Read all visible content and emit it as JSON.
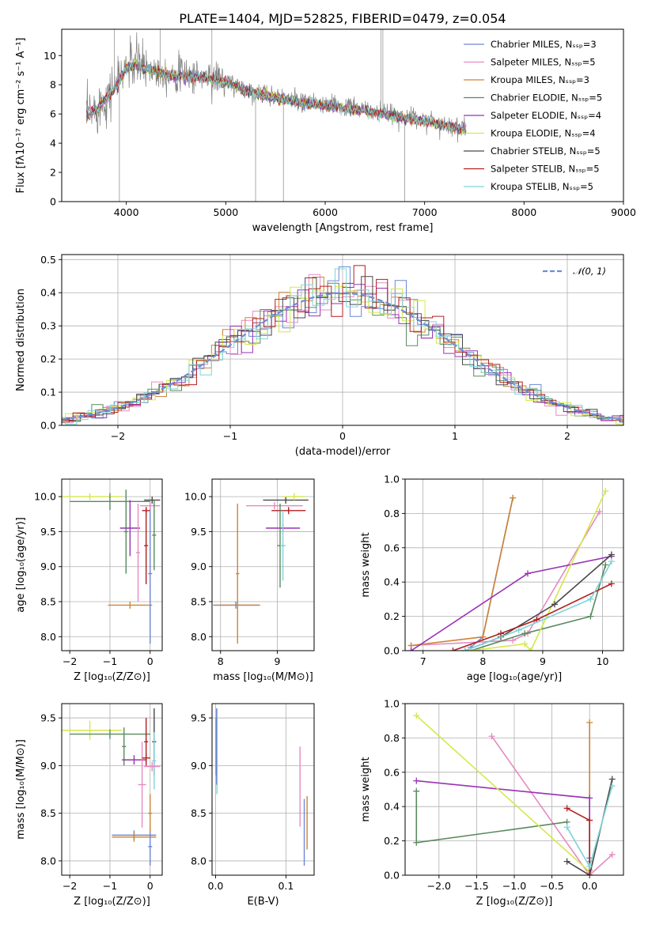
{
  "figure_title": "PLATE=1404, MJD=52825, FIBERID=0479, z=0.054",
  "chart_data": [
    {
      "id": "spectrum",
      "type": "line",
      "title": "PLATE=1404, MJD=52825, FIBERID=0479, z=0.054",
      "xlabel": "wavelength [Angstrom, rest frame]",
      "ylabel": "Flux [fλ10⁻¹⁷ erg cm⁻² s⁻¹ A⁻¹]",
      "xlim": [
        3350,
        9000
      ],
      "ylim": [
        0,
        11.8
      ],
      "xticks": [
        4000,
        5000,
        6000,
        7000,
        8000,
        9000
      ],
      "yticks": [
        0,
        2,
        4,
        6,
        8,
        10
      ],
      "grid": false,
      "legend_position": "top-right",
      "data_color": "#808080",
      "continuum_x": [
        3600,
        3700,
        3800,
        3900,
        4000,
        4100,
        4200,
        4300,
        4400,
        4600,
        4800,
        5000,
        5200,
        5500,
        5800,
        6100,
        6400,
        6700,
        7000,
        7200,
        7400
      ],
      "continuum_y": [
        6.0,
        6.4,
        7.2,
        8.0,
        9.3,
        9.5,
        9.2,
        9.0,
        8.8,
        8.7,
        8.6,
        8.3,
        7.7,
        7.2,
        6.8,
        6.6,
        6.3,
        5.9,
        5.6,
        5.3,
        5.0
      ],
      "series": [
        {
          "name": "Chabrier MILES, Nₛₛₚ=3",
          "color": "#6f86d6"
        },
        {
          "name": "Salpeter MILES, Nₛₛₚ=5",
          "color": "#e68ac3"
        },
        {
          "name": "Kroupa MILES, Nₛₛₚ=3",
          "color": "#cc8537"
        },
        {
          "name": "Chabrier ELODIE, Nₛₛₚ=5",
          "color": "#5a8a5f"
        },
        {
          "name": "Salpeter ELODIE, Nₛₛₚ=4",
          "color": "#9932b4"
        },
        {
          "name": "Kroupa ELODIE, Nₛₛₚ=4",
          "color": "#d4e84a"
        },
        {
          "name": "Chabrier STELIB, Nₛₛₚ=5",
          "color": "#484848"
        },
        {
          "name": "Salpeter STELIB, Nₛₛₚ=5",
          "color": "#b21f1f"
        },
        {
          "name": "Kroupa STELIB, Nₛₛₚ=5",
          "color": "#7fd4d8"
        }
      ]
    },
    {
      "id": "residuals",
      "type": "histogram",
      "xlabel": "(data-model)/error",
      "ylabel": "Normed distribution",
      "xlim": [
        -2.5,
        2.5
      ],
      "ylim": [
        0,
        0.515
      ],
      "xticks": [
        -2,
        -1,
        0,
        1,
        2
      ],
      "yticks": [
        0.0,
        0.1,
        0.2,
        0.3,
        0.4,
        0.5
      ],
      "grid": true,
      "legend_position": "top-right",
      "reference": {
        "name": "𝒩(0, 1)",
        "color": "#6a8fd8",
        "style": "dashed",
        "mean": 0,
        "sigma": 1
      },
      "bin_width": 0.1
    },
    {
      "id": "age-vs-Z",
      "type": "errorbar",
      "xlabel": "Z [log₁₀(Z/Z⊙)]",
      "ylabel": "age  [log₁₀(age/yr)]",
      "xlim": [
        -2.2,
        0.3
      ],
      "ylim": [
        7.8,
        10.25
      ],
      "xticks": [
        -2,
        -1,
        0
      ],
      "yticks": [
        8.0,
        8.5,
        9.0,
        9.5,
        10.0
      ],
      "grid": true,
      "points": [
        {
          "series": 5,
          "x": -1.5,
          "xerr": 0.8,
          "y": 10.0,
          "yerr": 0.05
        },
        {
          "series": 3,
          "x": -1.0,
          "xerr": 1.0,
          "y": 9.93,
          "yerr": 0.12
        },
        {
          "series": 3,
          "x": -0.6,
          "xerr": 0.05,
          "y": 9.5,
          "yerr": 0.6
        },
        {
          "series": 4,
          "x": -0.5,
          "xerr": 0.25,
          "y": 9.55,
          "yerr": 0.4
        },
        {
          "series": 1,
          "x": -0.3,
          "xerr": 0.05,
          "y": 9.2,
          "yerr": 0.7
        },
        {
          "series": 7,
          "x": -0.1,
          "xerr": 0.05,
          "y": 9.3,
          "yerr": 0.55
        },
        {
          "series": 7,
          "x": -0.1,
          "xerr": 0.1,
          "y": 9.8,
          "yerr": 0.05
        },
        {
          "series": 2,
          "x": -0.5,
          "xerr": 0.55,
          "y": 8.45,
          "yerr": 0.05
        },
        {
          "series": 0,
          "x": 0.0,
          "xerr": 0.05,
          "y": 8.9,
          "yerr": 1.0
        },
        {
          "series": 6,
          "x": 0.05,
          "xerr": 0.2,
          "y": 9.95,
          "yerr": 0.05
        },
        {
          "series": 1,
          "x": 0.0,
          "xerr": 0.25,
          "y": 9.87,
          "yerr": 0.05
        },
        {
          "series": 3,
          "x": 0.1,
          "xerr": 0.05,
          "y": 9.45,
          "yerr": 0.5
        }
      ]
    },
    {
      "id": "age-vs-mass",
      "type": "errorbar",
      "xlabel": "mass [log₁₀(M/M⊙)]",
      "ylabel": "",
      "xlim": [
        7.85,
        9.65
      ],
      "ylim": [
        7.8,
        10.25
      ],
      "xticks": [
        8,
        9
      ],
      "yticks": [
        8.0,
        8.5,
        9.0,
        9.5,
        10.0
      ],
      "grid": true,
      "points": [
        {
          "series": 0,
          "x": 8.27,
          "xerr": 0.4,
          "y": 8.45,
          "yerr": 0.05
        },
        {
          "series": 2,
          "x": 8.3,
          "xerr": 0.4,
          "y": 8.45,
          "yerr": 0.05
        },
        {
          "series": 2,
          "x": 8.3,
          "xerr": 0.03,
          "y": 8.9,
          "yerr": 1.0
        },
        {
          "series": 1,
          "x": 8.95,
          "xerr": 0.5,
          "y": 9.87,
          "yerr": 0.05
        },
        {
          "series": 4,
          "x": 9.1,
          "xerr": 0.3,
          "y": 9.55,
          "yerr": 0.05
        },
        {
          "series": 7,
          "x": 9.2,
          "xerr": 0.3,
          "y": 9.8,
          "yerr": 0.05
        },
        {
          "series": 3,
          "x": 9.05,
          "xerr": 0.05,
          "y": 9.3,
          "yerr": 0.6
        },
        {
          "series": 6,
          "x": 9.15,
          "xerr": 0.4,
          "y": 9.95,
          "yerr": 0.05
        },
        {
          "series": 5,
          "x": 9.3,
          "xerr": 0.2,
          "y": 10.0,
          "yerr": 0.05
        },
        {
          "series": 8,
          "x": 9.1,
          "xerr": 0.05,
          "y": 9.3,
          "yerr": 0.5
        }
      ]
    },
    {
      "id": "weight-vs-age",
      "type": "line",
      "xlabel": "age  [log₁₀(age/yr)]",
      "ylabel": "mass weight",
      "xlim": [
        6.7,
        10.35
      ],
      "ylim": [
        0,
        1.0
      ],
      "xticks": [
        7,
        8,
        9,
        10
      ],
      "yticks": [
        0.0,
        0.2,
        0.4,
        0.6,
        0.8,
        1.0
      ],
      "grid": true,
      "series": [
        {
          "series": 0,
          "x": [
            7.8,
            8.0,
            8.5
          ],
          "y": [
            0.02,
            0.08,
            0.89
          ]
        },
        {
          "series": 1,
          "x": [
            6.8,
            8.5,
            8.75,
            9.95
          ],
          "y": [
            0.03,
            0.06,
            0.1,
            0.81
          ]
        },
        {
          "series": 2,
          "x": [
            6.8,
            8.0,
            8.5
          ],
          "y": [
            0.03,
            0.08,
            0.89
          ]
        },
        {
          "series": 3,
          "x": [
            7.8,
            8.7,
            9.8,
            10.05
          ],
          "y": [
            0.0,
            0.1,
            0.2,
            0.5
          ]
        },
        {
          "series": 4,
          "x": [
            6.8,
            8.75,
            10.15
          ],
          "y": [
            0.0,
            0.45,
            0.55
          ]
        },
        {
          "series": 5,
          "x": [
            7.8,
            8.7,
            8.8,
            10.05
          ],
          "y": [
            0.0,
            0.04,
            0.0,
            0.93
          ]
        },
        {
          "series": 6,
          "x": [
            7.7,
            8.3,
            9.2,
            10.15
          ],
          "y": [
            0.0,
            0.08,
            0.27,
            0.56
          ]
        },
        {
          "series": 7,
          "x": [
            7.5,
            8.3,
            8.9,
            10.15
          ],
          "y": [
            0.0,
            0.1,
            0.18,
            0.39
          ]
        },
        {
          "series": 8,
          "x": [
            7.7,
            8.6,
            9.8,
            10.15
          ],
          "y": [
            0.0,
            0.12,
            0.3,
            0.52
          ]
        }
      ]
    },
    {
      "id": "mass-vs-Z",
      "type": "errorbar",
      "xlabel": "Z [log₁₀(Z/Z⊙)]",
      "ylabel": "mass [log₁₀(M/M⊙)]",
      "xlim": [
        -2.2,
        0.3
      ],
      "ylim": [
        7.85,
        9.65
      ],
      "xticks": [
        -2,
        -1,
        0
      ],
      "yticks": [
        8.0,
        8.5,
        9.0,
        9.5
      ],
      "grid": true,
      "points": [
        {
          "series": 5,
          "x": -1.5,
          "xerr": 0.8,
          "y": 9.37,
          "yerr": 0.1
        },
        {
          "series": 3,
          "x": -1.0,
          "xerr": 1.0,
          "y": 9.33,
          "yerr": 0.05
        },
        {
          "series": 3,
          "x": -0.65,
          "xerr": 0.05,
          "y": 9.2,
          "yerr": 0.2
        },
        {
          "series": 4,
          "x": -0.4,
          "xerr": 0.3,
          "y": 9.06,
          "yerr": 0.05
        },
        {
          "series": 1,
          "x": -0.2,
          "xerr": 0.1,
          "y": 8.8,
          "yerr": 0.45
        },
        {
          "series": 7,
          "x": -0.1,
          "xerr": 0.05,
          "y": 9.25,
          "yerr": 0.25
        },
        {
          "series": 7,
          "x": -0.1,
          "xerr": 0.1,
          "y": 9.08,
          "yerr": 0.05
        },
        {
          "series": 0,
          "x": -0.4,
          "xerr": 0.55,
          "y": 8.27,
          "yerr": 0.05
        },
        {
          "series": 2,
          "x": -0.4,
          "xerr": 0.55,
          "y": 8.25,
          "yerr": 0.05
        },
        {
          "series": 0,
          "x": 0.0,
          "xerr": 0.05,
          "y": 8.15,
          "yerr": 0.2
        },
        {
          "series": 2,
          "x": 0.0,
          "xerr": 0.05,
          "y": 8.5,
          "yerr": 0.2
        },
        {
          "series": 6,
          "x": 0.1,
          "xerr": 0.05,
          "y": 9.25,
          "yerr": 0.35
        },
        {
          "series": 8,
          "x": 0.1,
          "xerr": 0.05,
          "y": 9.05,
          "yerr": 0.3
        },
        {
          "series": 1,
          "x": 0.05,
          "xerr": 0.2,
          "y": 8.99,
          "yerr": 0.05
        }
      ]
    },
    {
      "id": "mass-vs-EBV",
      "type": "errorbar",
      "xlabel": "E(B-V)",
      "ylabel": "",
      "xlim": [
        -0.005,
        0.14
      ],
      "ylim": [
        7.85,
        9.65
      ],
      "xticks": [
        0.0,
        0.1
      ],
      "yticks": [
        8.0,
        8.5,
        9.0,
        9.5
      ],
      "grid": true,
      "points": [
        {
          "series": 3,
          "x": 0.001,
          "xerr": 0.0,
          "y": 9.2,
          "yerr": 0.3
        },
        {
          "series": 8,
          "x": 0.002,
          "xerr": 0.0,
          "y": 9.15,
          "yerr": 0.45
        },
        {
          "series": 0,
          "x": 0.0015,
          "xerr": 0.0,
          "y": 9.2,
          "yerr": 0.4
        },
        {
          "series": 1,
          "x": 0.12,
          "xerr": 0.0,
          "y": 8.78,
          "yerr": 0.42
        },
        {
          "series": 0,
          "x": 0.126,
          "xerr": 0.0,
          "y": 8.3,
          "yerr": 0.35
        },
        {
          "series": 2,
          "x": 0.13,
          "xerr": 0.0,
          "y": 8.4,
          "yerr": 0.28
        }
      ]
    },
    {
      "id": "weight-vs-Z",
      "type": "line",
      "xlabel": "Z [log₁₀(Z/Z⊙)]",
      "ylabel": "mass weight",
      "xlim": [
        -2.45,
        0.45
      ],
      "ylim": [
        0,
        1.0
      ],
      "xticks": [
        -2.0,
        -1.5,
        -1.0,
        -0.5,
        0.0
      ],
      "yticks": [
        0.0,
        0.2,
        0.4,
        0.6,
        0.8,
        1.0
      ],
      "grid": true,
      "series": [
        {
          "series": 0,
          "x": [
            0.0,
            0.0
          ],
          "y": [
            0.02,
            0.1
          ]
        },
        {
          "series": 1,
          "x": [
            -1.3,
            0.0,
            0.3
          ],
          "y": [
            0.81,
            0.0,
            0.12
          ]
        },
        {
          "series": 2,
          "x": [
            0.0,
            0.0,
            0.0
          ],
          "y": [
            0.89,
            0.08,
            0.03
          ]
        },
        {
          "series": 3,
          "x": [
            -2.3,
            -2.3,
            -0.3
          ],
          "y": [
            0.49,
            0.19,
            0.31
          ]
        },
        {
          "series": 4,
          "x": [
            -2.3,
            0.0,
            0.0
          ],
          "y": [
            0.55,
            0.45,
            0.0
          ]
        },
        {
          "series": 5,
          "x": [
            -2.3,
            0.0
          ],
          "y": [
            0.93,
            0.02
          ]
        },
        {
          "series": 6,
          "x": [
            -0.3,
            0.0,
            0.3
          ],
          "y": [
            0.08,
            0.0,
            0.56
          ]
        },
        {
          "series": 7,
          "x": [
            -0.3,
            0.0,
            0.0
          ],
          "y": [
            0.39,
            0.32,
            0.0
          ]
        },
        {
          "series": 8,
          "x": [
            -0.3,
            0.0,
            0.3
          ],
          "y": [
            0.28,
            0.05,
            0.52
          ]
        }
      ]
    }
  ]
}
